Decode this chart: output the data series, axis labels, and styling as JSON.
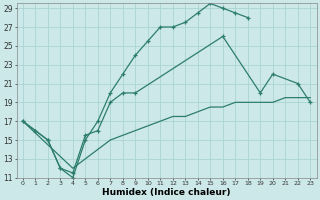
{
  "xlabel": "Humidex (Indice chaleur)",
  "bg_color": "#cce8e8",
  "line_color": "#2d7d6e",
  "grid_color": "#aad4d4",
  "xlim": [
    -0.5,
    23.5
  ],
  "ylim": [
    11,
    29.5
  ],
  "xticks": [
    0,
    1,
    2,
    3,
    4,
    5,
    6,
    7,
    8,
    9,
    10,
    11,
    12,
    13,
    14,
    15,
    16,
    17,
    18,
    19,
    20,
    21,
    22,
    23
  ],
  "yticks": [
    11,
    13,
    15,
    17,
    19,
    21,
    23,
    25,
    27,
    29
  ],
  "series1": {
    "x": [
      0,
      1,
      2,
      3,
      4,
      5,
      6,
      7,
      8,
      9,
      10,
      11,
      12,
      13,
      14,
      15,
      16,
      17,
      18
    ],
    "y": [
      17,
      16,
      15,
      12,
      11,
      15,
      17,
      20,
      22,
      24,
      25.5,
      27,
      27,
      27.5,
      28.5,
      29.5,
      29,
      28.5,
      28
    ]
  },
  "series2": {
    "x": [
      0,
      1,
      2,
      3,
      4,
      5,
      6,
      7,
      8,
      9,
      16,
      19,
      20,
      22,
      23
    ],
    "y": [
      17,
      16,
      15,
      12,
      11.5,
      15.5,
      16,
      19,
      20,
      20,
      26,
      20,
      22,
      21,
      19
    ]
  },
  "series3_nomarker": {
    "x": [
      0,
      4,
      5,
      6,
      7,
      8,
      9,
      10,
      11,
      12,
      13,
      14,
      15,
      16,
      17,
      18,
      19,
      20,
      21,
      22,
      23
    ],
    "y": [
      17,
      12,
      13,
      14,
      15,
      15.5,
      16,
      16.5,
      17,
      17.5,
      17.5,
      18,
      18.5,
      18.5,
      19,
      19,
      19,
      19,
      19.5,
      19.5,
      19.5
    ]
  }
}
